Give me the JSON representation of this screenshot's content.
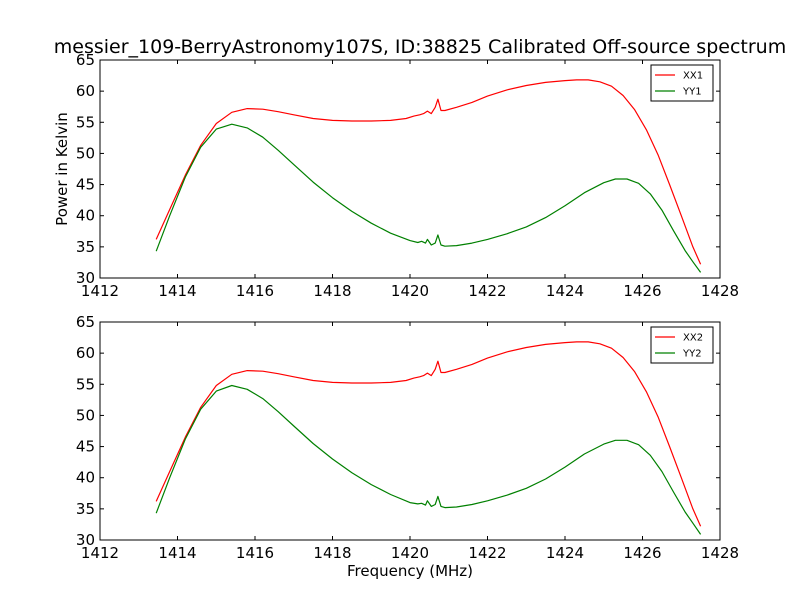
{
  "chart_data": [
    {
      "type": "line",
      "title": "messier_109-BerryAstronomy107S, ID:38825 Calibrated Off-source spectrum",
      "xlabel": "",
      "ylabel": "Power in Kelvin",
      "xlim": [
        1412,
        1428
      ],
      "ylim": [
        30,
        65
      ],
      "xticks": [
        1412,
        1414,
        1416,
        1418,
        1420,
        1422,
        1424,
        1426,
        1428
      ],
      "yticks": [
        30,
        35,
        40,
        45,
        50,
        55,
        60,
        65
      ],
      "legend_position": "top-right",
      "series": [
        {
          "name": "XX1",
          "color": "#ff0000",
          "x": [
            1413.45,
            1413.8,
            1414.2,
            1414.6,
            1415.0,
            1415.4,
            1415.8,
            1416.2,
            1416.6,
            1417.0,
            1417.5,
            1418.0,
            1418.5,
            1419.0,
            1419.5,
            1419.9,
            1420.1,
            1420.25,
            1420.35,
            1420.45,
            1420.55,
            1420.65,
            1420.72,
            1420.8,
            1420.9,
            1421.2,
            1421.6,
            1422.0,
            1422.5,
            1423.0,
            1423.5,
            1424.0,
            1424.3,
            1424.6,
            1424.9,
            1425.2,
            1425.5,
            1425.8,
            1426.1,
            1426.4,
            1426.7,
            1427.0,
            1427.3,
            1427.5
          ],
          "y": [
            36.2,
            41.0,
            46.5,
            51.3,
            54.8,
            56.6,
            57.2,
            57.1,
            56.7,
            56.2,
            55.6,
            55.3,
            55.2,
            55.2,
            55.3,
            55.6,
            56.0,
            56.2,
            56.4,
            56.8,
            56.4,
            57.4,
            58.7,
            56.9,
            56.9,
            57.4,
            58.2,
            59.2,
            60.2,
            60.9,
            61.4,
            61.7,
            61.8,
            61.8,
            61.5,
            60.8,
            59.3,
            57.0,
            53.8,
            49.8,
            45.0,
            40.0,
            35.0,
            32.2
          ]
        },
        {
          "name": "YY1",
          "color": "#008000",
          "x": [
            1413.45,
            1413.8,
            1414.2,
            1414.6,
            1415.0,
            1415.4,
            1415.8,
            1416.2,
            1416.6,
            1417.0,
            1417.5,
            1418.0,
            1418.5,
            1419.0,
            1419.5,
            1420.0,
            1420.2,
            1420.3,
            1420.4,
            1420.45,
            1420.55,
            1420.65,
            1420.72,
            1420.8,
            1420.9,
            1421.2,
            1421.6,
            1422.0,
            1422.5,
            1423.0,
            1423.5,
            1424.0,
            1424.5,
            1425.0,
            1425.3,
            1425.6,
            1425.9,
            1426.2,
            1426.5,
            1426.8,
            1427.1,
            1427.3,
            1427.5
          ],
          "y": [
            34.3,
            40.0,
            46.2,
            51.0,
            53.9,
            54.7,
            54.1,
            52.6,
            50.5,
            48.2,
            45.4,
            42.9,
            40.7,
            38.8,
            37.2,
            36.0,
            35.7,
            35.9,
            35.6,
            36.2,
            35.3,
            35.6,
            36.9,
            35.3,
            35.1,
            35.2,
            35.6,
            36.2,
            37.1,
            38.2,
            39.7,
            41.6,
            43.7,
            45.3,
            45.9,
            45.9,
            45.2,
            43.5,
            40.9,
            37.6,
            34.4,
            32.6,
            30.9
          ]
        }
      ]
    },
    {
      "type": "line",
      "title": "",
      "xlabel": "Frequency (MHz)",
      "ylabel": "",
      "xlim": [
        1412,
        1428
      ],
      "ylim": [
        30,
        65
      ],
      "xticks": [
        1412,
        1414,
        1416,
        1418,
        1420,
        1422,
        1424,
        1426,
        1428
      ],
      "yticks": [
        30,
        35,
        40,
        45,
        50,
        55,
        60,
        65
      ],
      "legend_position": "top-right",
      "series": [
        {
          "name": "XX2",
          "color": "#ff0000",
          "x": [
            1413.45,
            1413.8,
            1414.2,
            1414.6,
            1415.0,
            1415.4,
            1415.8,
            1416.2,
            1416.6,
            1417.0,
            1417.5,
            1418.0,
            1418.5,
            1419.0,
            1419.5,
            1419.9,
            1420.1,
            1420.25,
            1420.35,
            1420.45,
            1420.55,
            1420.65,
            1420.72,
            1420.8,
            1420.9,
            1421.2,
            1421.6,
            1422.0,
            1422.5,
            1423.0,
            1423.5,
            1424.0,
            1424.3,
            1424.6,
            1424.9,
            1425.2,
            1425.5,
            1425.8,
            1426.1,
            1426.4,
            1426.7,
            1427.0,
            1427.3,
            1427.5
          ],
          "y": [
            36.2,
            41.0,
            46.5,
            51.3,
            54.8,
            56.6,
            57.2,
            57.1,
            56.7,
            56.2,
            55.6,
            55.3,
            55.2,
            55.2,
            55.3,
            55.6,
            56.0,
            56.2,
            56.4,
            56.8,
            56.4,
            57.4,
            58.7,
            56.9,
            56.9,
            57.4,
            58.2,
            59.2,
            60.2,
            60.9,
            61.4,
            61.7,
            61.8,
            61.8,
            61.5,
            60.8,
            59.3,
            57.0,
            53.8,
            49.8,
            45.0,
            40.0,
            35.0,
            32.2
          ]
        },
        {
          "name": "YY2",
          "color": "#008000",
          "x": [
            1413.45,
            1413.8,
            1414.2,
            1414.6,
            1415.0,
            1415.4,
            1415.8,
            1416.2,
            1416.6,
            1417.0,
            1417.5,
            1418.0,
            1418.5,
            1419.0,
            1419.5,
            1420.0,
            1420.2,
            1420.3,
            1420.4,
            1420.45,
            1420.55,
            1420.65,
            1420.72,
            1420.8,
            1420.9,
            1421.2,
            1421.6,
            1422.0,
            1422.5,
            1423.0,
            1423.5,
            1424.0,
            1424.5,
            1425.0,
            1425.3,
            1425.6,
            1425.9,
            1426.2,
            1426.5,
            1426.8,
            1427.1,
            1427.3,
            1427.5
          ],
          "y": [
            34.3,
            40.0,
            46.2,
            51.0,
            53.9,
            54.8,
            54.2,
            52.7,
            50.6,
            48.3,
            45.5,
            43.0,
            40.8,
            38.9,
            37.3,
            36.0,
            35.8,
            35.9,
            35.6,
            36.3,
            35.4,
            35.7,
            37.0,
            35.4,
            35.2,
            35.3,
            35.7,
            36.3,
            37.2,
            38.3,
            39.8,
            41.7,
            43.8,
            45.4,
            46.0,
            46.0,
            45.3,
            43.6,
            41.0,
            37.7,
            34.5,
            32.7,
            30.9
          ]
        }
      ]
    }
  ]
}
